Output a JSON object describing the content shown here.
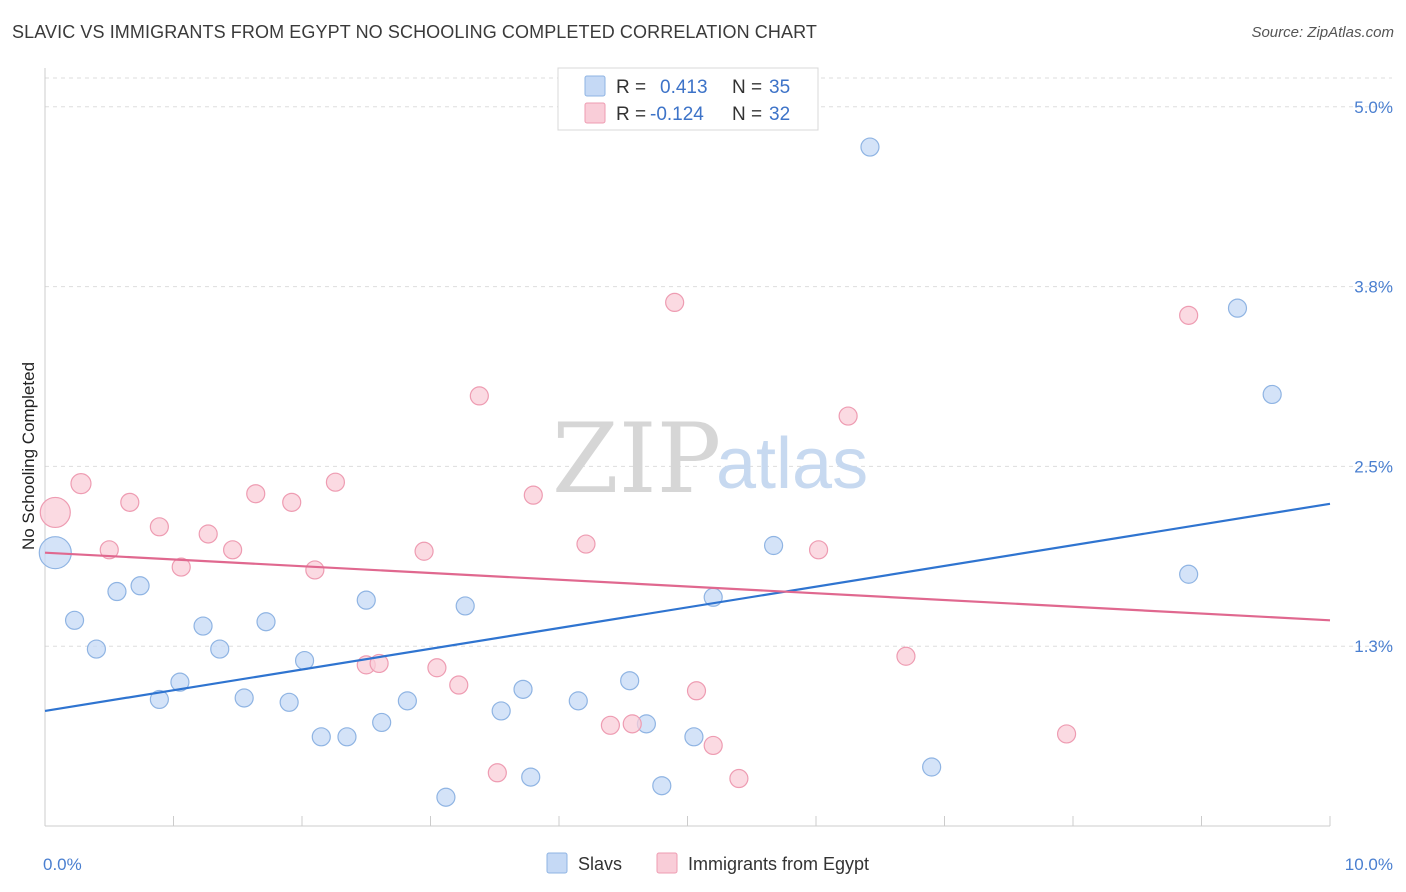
{
  "title": "SLAVIC VS IMMIGRANTS FROM EGYPT NO SCHOOLING COMPLETED CORRELATION CHART",
  "source": "Source: ZipAtlas.com",
  "watermark": {
    "zip": "ZIP",
    "atlas": "atlas"
  },
  "stats": [
    {
      "r_label": "R =",
      "r_value": "0.413",
      "n_label": "N =",
      "n_value": "35"
    },
    {
      "r_label": "R =",
      "r_value": "-0.124",
      "n_label": "N =",
      "n_value": "32"
    }
  ],
  "colors": {
    "slavs_fill": "#c5d9f5",
    "slavs_stroke": "#8fb4e3",
    "slavs_line": "#2f74d0",
    "egypt_fill": "#f9cdd8",
    "egypt_stroke": "#ee9cb2",
    "egypt_line": "#e0688f",
    "grid": "#dddddd",
    "tick_label": "#4a7fd0"
  },
  "chart_data": {
    "type": "scatter",
    "title": "SLAVIC VS IMMIGRANTS FROM EGYPT NO SCHOOLING COMPLETED CORRELATION CHART",
    "xlabel": "",
    "ylabel": "No Schooling Completed",
    "xlim": [
      0,
      10
    ],
    "ylim": [
      0,
      5.2
    ],
    "x_tick_labels": [
      {
        "value": 0,
        "label": "0.0%"
      },
      {
        "value": 10,
        "label": "10.0%"
      }
    ],
    "y_tick_labels": [
      {
        "value": 1.25,
        "label": "1.3%"
      },
      {
        "value": 2.5,
        "label": "2.5%"
      },
      {
        "value": 3.75,
        "label": "3.8%"
      },
      {
        "value": 5.0,
        "label": "5.0%"
      }
    ],
    "grid": true,
    "legend_position": "bottom",
    "series": [
      {
        "name": "Slavs",
        "r": 0.413,
        "n": 35,
        "trend": [
          [
            0,
            0.8
          ],
          [
            10,
            2.24
          ]
        ],
        "points": [
          [
            0.08,
            1.9,
            16
          ],
          [
            0.23,
            1.43,
            9
          ],
          [
            0.4,
            1.23,
            9
          ],
          [
            0.56,
            1.63,
            9
          ],
          [
            0.74,
            1.67,
            9
          ],
          [
            0.89,
            0.88,
            9
          ],
          [
            1.05,
            1.0,
            9
          ],
          [
            1.23,
            1.39,
            9
          ],
          [
            1.36,
            1.23,
            9
          ],
          [
            1.55,
            0.89,
            9
          ],
          [
            1.72,
            1.42,
            9
          ],
          [
            1.9,
            0.86,
            9
          ],
          [
            2.02,
            1.15,
            9
          ],
          [
            2.15,
            0.62,
            9
          ],
          [
            2.35,
            0.62,
            9
          ],
          [
            2.5,
            1.57,
            9
          ],
          [
            2.62,
            0.72,
            9
          ],
          [
            2.82,
            0.87,
            9
          ],
          [
            3.12,
            0.2,
            9
          ],
          [
            3.27,
            1.53,
            9
          ],
          [
            3.55,
            0.8,
            9
          ],
          [
            3.72,
            0.95,
            9
          ],
          [
            3.78,
            0.34,
            9
          ],
          [
            4.15,
            0.87,
            9
          ],
          [
            4.55,
            1.01,
            9
          ],
          [
            4.68,
            0.71,
            9
          ],
          [
            4.8,
            0.28,
            9
          ],
          [
            5.05,
            0.62,
            9
          ],
          [
            5.2,
            1.59,
            9
          ],
          [
            5.67,
            1.95,
            9
          ],
          [
            6.42,
            4.72,
            9
          ],
          [
            6.9,
            0.41,
            9
          ],
          [
            8.9,
            1.75,
            9
          ],
          [
            9.28,
            3.6,
            9
          ],
          [
            9.55,
            3.0,
            9
          ]
        ]
      },
      {
        "name": "Immigrants from Egypt",
        "r": -0.124,
        "n": 32,
        "trend": [
          [
            0,
            1.9
          ],
          [
            10,
            1.43
          ]
        ],
        "points": [
          [
            0.08,
            2.18,
            15
          ],
          [
            0.28,
            2.38,
            10
          ],
          [
            0.5,
            1.92,
            9
          ],
          [
            0.66,
            2.25,
            9
          ],
          [
            0.89,
            2.08,
            9
          ],
          [
            1.06,
            1.8,
            9
          ],
          [
            1.27,
            2.03,
            9
          ],
          [
            1.46,
            1.92,
            9
          ],
          [
            1.64,
            2.31,
            9
          ],
          [
            1.92,
            2.25,
            9
          ],
          [
            2.1,
            1.78,
            9
          ],
          [
            2.26,
            2.39,
            9
          ],
          [
            2.5,
            1.12,
            9
          ],
          [
            2.6,
            1.13,
            9
          ],
          [
            2.95,
            1.91,
            9
          ],
          [
            3.05,
            1.1,
            9
          ],
          [
            3.22,
            0.98,
            9
          ],
          [
            3.38,
            2.99,
            9
          ],
          [
            3.52,
            0.37,
            9
          ],
          [
            3.8,
            2.3,
            9
          ],
          [
            4.21,
            1.96,
            9
          ],
          [
            4.4,
            0.7,
            9
          ],
          [
            4.57,
            0.71,
            9
          ],
          [
            4.9,
            3.64,
            9
          ],
          [
            5.07,
            0.94,
            9
          ],
          [
            5.2,
            0.56,
            9
          ],
          [
            5.4,
            0.33,
            9
          ],
          [
            6.02,
            1.92,
            9
          ],
          [
            6.25,
            2.85,
            9
          ],
          [
            6.7,
            1.18,
            9
          ],
          [
            7.95,
            0.64,
            9
          ],
          [
            8.9,
            3.55,
            9
          ]
        ]
      }
    ]
  },
  "bottom_legend": [
    {
      "label": "Slavs"
    },
    {
      "label": "Immigrants from Egypt"
    }
  ]
}
